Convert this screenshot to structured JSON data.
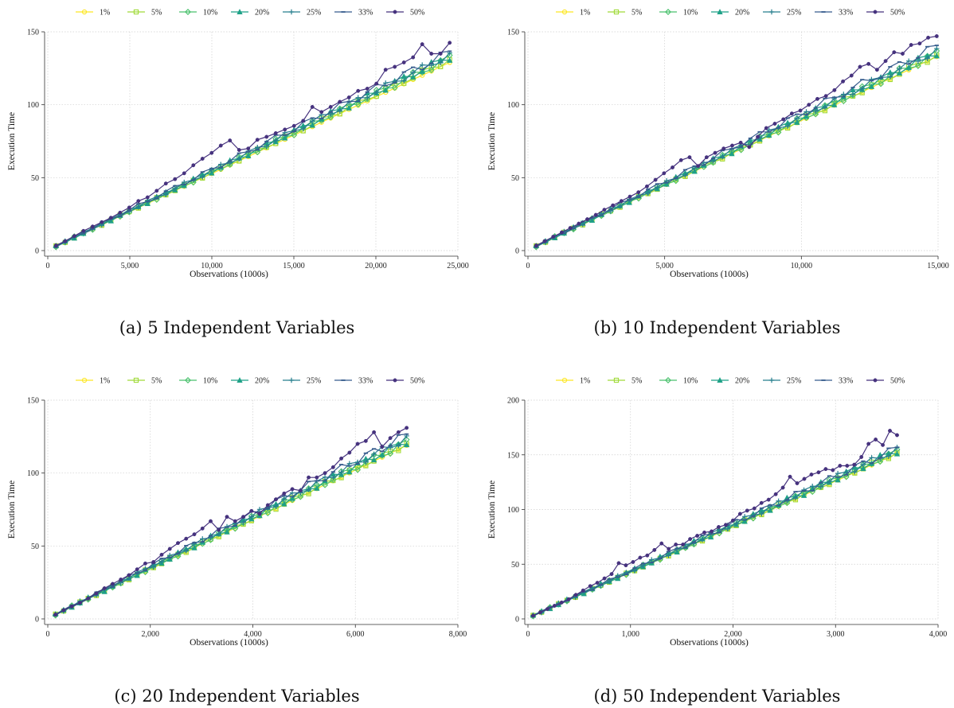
{
  "captions": {
    "a": "(a) 5 Independent Variables",
    "b": "(b) 10 Independent Variables",
    "c": "(c) 20 Independent Variables",
    "d": "(d) 50 Independent Variables"
  },
  "series_style": [
    {
      "name": "1%",
      "color": "#fde725",
      "marker": "circle"
    },
    {
      "name": "5%",
      "color": "#a0da39",
      "marker": "square"
    },
    {
      "name": "10%",
      "color": "#4ac16d",
      "marker": "diamond"
    },
    {
      "name": "20%",
      "color": "#1fa187",
      "marker": "triangle"
    },
    {
      "name": "25%",
      "color": "#277f8e",
      "marker": "plus"
    },
    {
      "name": "33%",
      "color": "#365c8d",
      "marker": "dash"
    },
    {
      "name": "50%",
      "color": "#46327e",
      "marker": "dot"
    }
  ],
  "chart_data": [
    {
      "type": "line",
      "xlabel": "Observations (1000s)",
      "ylabel": "Execution Time",
      "xlim": [
        0,
        25000
      ],
      "ylim": [
        0,
        150
      ],
      "xticks": [
        0,
        5000,
        10000,
        15000,
        20000,
        25000
      ],
      "xtick_labels": [
        "0",
        "5,000",
        "10,000",
        "15,000",
        "20,000",
        "25,000"
      ],
      "yticks": [
        0,
        50,
        100,
        150
      ],
      "ytick_labels": [
        "0",
        "50",
        "100",
        "150"
      ],
      "legend": "top",
      "grid": true,
      "x_range": [
        500,
        24500
      ],
      "baseline": {
        "start": 3,
        "end": 134
      },
      "series": [
        {
          "name": "1%",
          "end": 129,
          "amp": 0
        },
        {
          "name": "5%",
          "end": 131,
          "amp": 1.5
        },
        {
          "name": "10%",
          "end": 132,
          "amp": 2
        },
        {
          "name": "20%",
          "end": 133,
          "amp": 2
        },
        {
          "name": "25%",
          "end": 134,
          "amp": 2
        },
        {
          "name": "33%",
          "end": 136,
          "amp": 2.5
        },
        {
          "name": "50%",
          "values": [
            3.5,
            6.5,
            10,
            13.5,
            16.5,
            19.5,
            22.5,
            26,
            29.5,
            34,
            36.5,
            41,
            46,
            49,
            53,
            58.5,
            63,
            67,
            72,
            75.5,
            69,
            70,
            76,
            78,
            80.5,
            83,
            85.5,
            89,
            98.5,
            95,
            98.5,
            102,
            105,
            109.5,
            111,
            114.5,
            124,
            126,
            129,
            132.5,
            141.5,
            135,
            135,
            142.5
          ]
        }
      ]
    },
    {
      "type": "line",
      "xlabel": "Observations (1000s)",
      "ylabel": "Execution Time",
      "xlim": [
        0,
        15000
      ],
      "ylim": [
        0,
        150
      ],
      "xticks": [
        0,
        5000,
        10000,
        15000
      ],
      "xtick_labels": [
        "0",
        "5,000",
        "10,000",
        "15,000"
      ],
      "yticks": [
        0,
        50,
        100,
        150
      ],
      "ytick_labels": [
        "0",
        "50",
        "100",
        "150"
      ],
      "legend": "top",
      "grid": true,
      "x_range": [
        300,
        14950
      ],
      "baseline": {
        "start": 3,
        "end": 136
      },
      "series": [
        {
          "name": "1%",
          "end": 133,
          "amp": 0
        },
        {
          "name": "5%",
          "end": 134,
          "amp": 1.5
        },
        {
          "name": "10%",
          "end": 135,
          "amp": 2
        },
        {
          "name": "20%",
          "end": 136,
          "amp": 2
        },
        {
          "name": "25%",
          "end": 137,
          "amp": 2
        },
        {
          "name": "33%",
          "end": 140,
          "amp": 2.5
        },
        {
          "name": "50%",
          "values": [
            3.5,
            6.5,
            9.5,
            12.5,
            15.5,
            18.5,
            21.5,
            24.5,
            28,
            31,
            34,
            37,
            40,
            44,
            48.5,
            53,
            57,
            62,
            64,
            58,
            64,
            67,
            70,
            72,
            74,
            71,
            78,
            84,
            87,
            90,
            94,
            96,
            100,
            104,
            106,
            110,
            116,
            120,
            126,
            128,
            124,
            130,
            136,
            135,
            141,
            142,
            146,
            147
          ]
        }
      ]
    },
    {
      "type": "line",
      "xlabel": "Observations (1000s)",
      "ylabel": "Execution Time",
      "xlim": [
        0,
        8000
      ],
      "ylim": [
        0,
        150
      ],
      "xticks": [
        0,
        2000,
        4000,
        6000,
        8000
      ],
      "xtick_labels": [
        "0",
        "2,000",
        "4,000",
        "6,000",
        "8,000"
      ],
      "yticks": [
        0,
        50,
        100,
        150
      ],
      "ytick_labels": [
        "0",
        "50",
        "100",
        "150"
      ],
      "legend": "top",
      "grid": true,
      "x_range": [
        150,
        7000
      ],
      "baseline": {
        "start": 3,
        "end": 121
      },
      "series": [
        {
          "name": "1%",
          "end": 119,
          "amp": 0
        },
        {
          "name": "5%",
          "end": 120,
          "amp": 1.5
        },
        {
          "name": "10%",
          "end": 121,
          "amp": 2
        },
        {
          "name": "20%",
          "end": 122,
          "amp": 2
        },
        {
          "name": "25%",
          "end": 124,
          "amp": 2
        },
        {
          "name": "33%",
          "end": 126,
          "amp": 2.5
        },
        {
          "name": "50%",
          "values": [
            3,
            6,
            8.5,
            11,
            14,
            17.5,
            21,
            24,
            27,
            30,
            34,
            38,
            39,
            44,
            48,
            52,
            55,
            58,
            62,
            67,
            61,
            70,
            67,
            70,
            74,
            72,
            78,
            82,
            86,
            89,
            88,
            97,
            97,
            100,
            104,
            110,
            114,
            120,
            122,
            128,
            118,
            124,
            128,
            131
          ]
        }
      ]
    },
    {
      "type": "line",
      "xlabel": "Observations (1000s)",
      "ylabel": "Execution Time",
      "xlim": [
        0,
        4000
      ],
      "ylim": [
        0,
        200
      ],
      "xticks": [
        0,
        1000,
        2000,
        3000,
        4000
      ],
      "xtick_labels": [
        "0",
        "1,000",
        "2,000",
        "3,000",
        "4,000"
      ],
      "yticks": [
        0,
        50,
        100,
        150,
        200
      ],
      "ytick_labels": [
        "0",
        "50",
        "100",
        "150",
        "200"
      ],
      "legend": "top",
      "grid": true,
      "x_range": [
        50,
        3600
      ],
      "baseline": {
        "start": 3,
        "end": 150
      },
      "series": [
        {
          "name": "1%",
          "end": 151,
          "amp": 0
        },
        {
          "name": "5%",
          "end": 152,
          "amp": 1.5
        },
        {
          "name": "10%",
          "end": 153,
          "amp": 2
        },
        {
          "name": "20%",
          "end": 154,
          "amp": 2.5
        },
        {
          "name": "25%",
          "end": 155,
          "amp": 2.5
        },
        {
          "name": "33%",
          "end": 156,
          "amp": 3
        },
        {
          "name": "50%",
          "values": [
            3,
            6,
            9,
            12,
            15,
            18,
            22,
            26,
            30,
            33,
            37,
            41,
            51,
            49,
            52,
            56,
            58,
            63,
            69,
            64,
            68,
            68,
            73,
            76,
            79,
            80,
            84,
            86,
            90,
            96,
            99,
            101,
            106,
            109,
            114,
            120,
            130,
            124,
            128,
            132,
            134,
            137,
            136,
            140,
            140,
            141,
            148,
            160,
            164,
            159,
            172,
            168
          ]
        }
      ]
    }
  ]
}
